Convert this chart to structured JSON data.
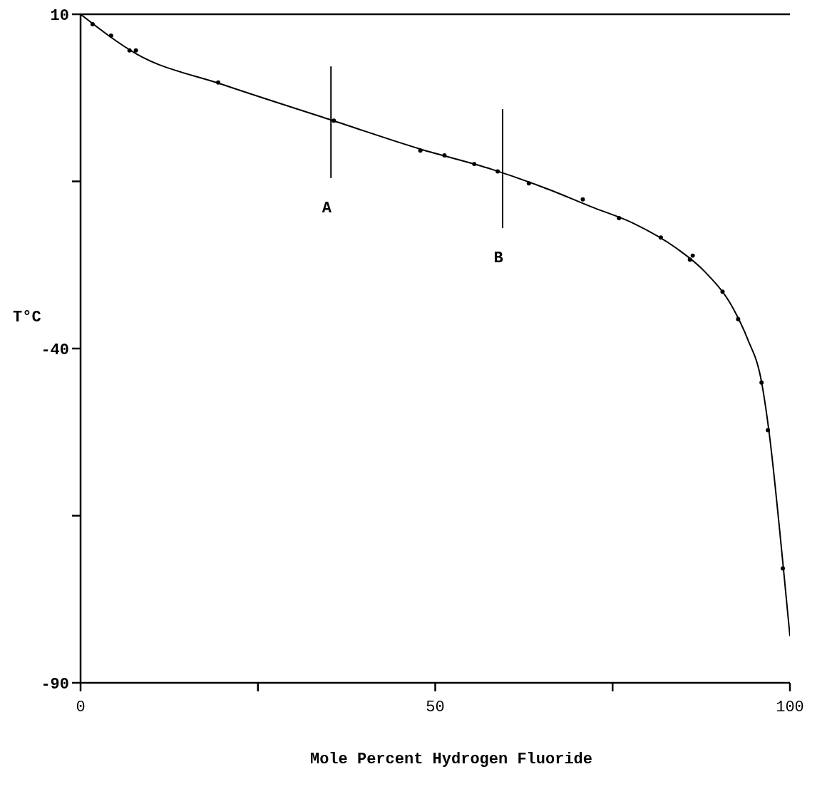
{
  "chart_data": {
    "type": "scatter",
    "xlabel": "Mole Percent Hydrogen Fluoride",
    "ylabel": "T°C",
    "xlim": [
      0,
      100
    ],
    "xticks": [
      0,
      {
        "value": 25,
        "label": null
      },
      50,
      {
        "value": 75,
        "label": null
      },
      100
    ],
    "ylim": [
      -90,
      10
    ],
    "yticks": [
      -90,
      {
        "value": -65,
        "label": null
      },
      -40,
      {
        "value": -15,
        "label": null
      },
      10
    ],
    "grid": false,
    "legend": false,
    "series": [
      {
        "type": "scatter",
        "marker": "circle",
        "color": "#000000",
        "x": [
          1.7,
          4.3,
          6.9,
          7.8,
          19.4,
          35.7,
          47.9,
          51.3,
          55.5,
          58.8,
          63.2,
          70.8,
          75.9,
          81.8,
          85.9,
          86.3,
          90.5,
          92.7,
          96.0,
          96.9,
          99.0
        ],
        "values": [
          8.5,
          6.8,
          4.6,
          4.6,
          -0.2,
          -5.9,
          -10.4,
          -11.1,
          -12.4,
          -13.5,
          -15.3,
          -17.7,
          -20.5,
          -23.4,
          -26.7,
          -26.1,
          -31.5,
          -35.6,
          -45.1,
          -52.2,
          -72.9
        ]
      },
      {
        "type": "line",
        "color": "#000000",
        "x": [
          0,
          8,
          20,
          35,
          48,
          58,
          66,
          72,
          78,
          84,
          88,
          92,
          94,
          96,
          97,
          99,
          100
        ],
        "values": [
          10,
          4.0,
          -0.5,
          -5.7,
          -10.2,
          -13.2,
          -16.2,
          -18.8,
          -21.3,
          -25,
          -28.5,
          -34,
          -38.5,
          -45,
          -52,
          -72,
          -83
        ]
      },
      {
        "type": "line",
        "name": "A",
        "color": "#000000",
        "x": [
          35.3,
          35.3
        ],
        "values": [
          2.2,
          -14.5
        ]
      },
      {
        "type": "line",
        "name": "B",
        "color": "#000000",
        "x": [
          59.5,
          59.5
        ],
        "values": [
          -4.2,
          -22
        ]
      }
    ]
  }
}
